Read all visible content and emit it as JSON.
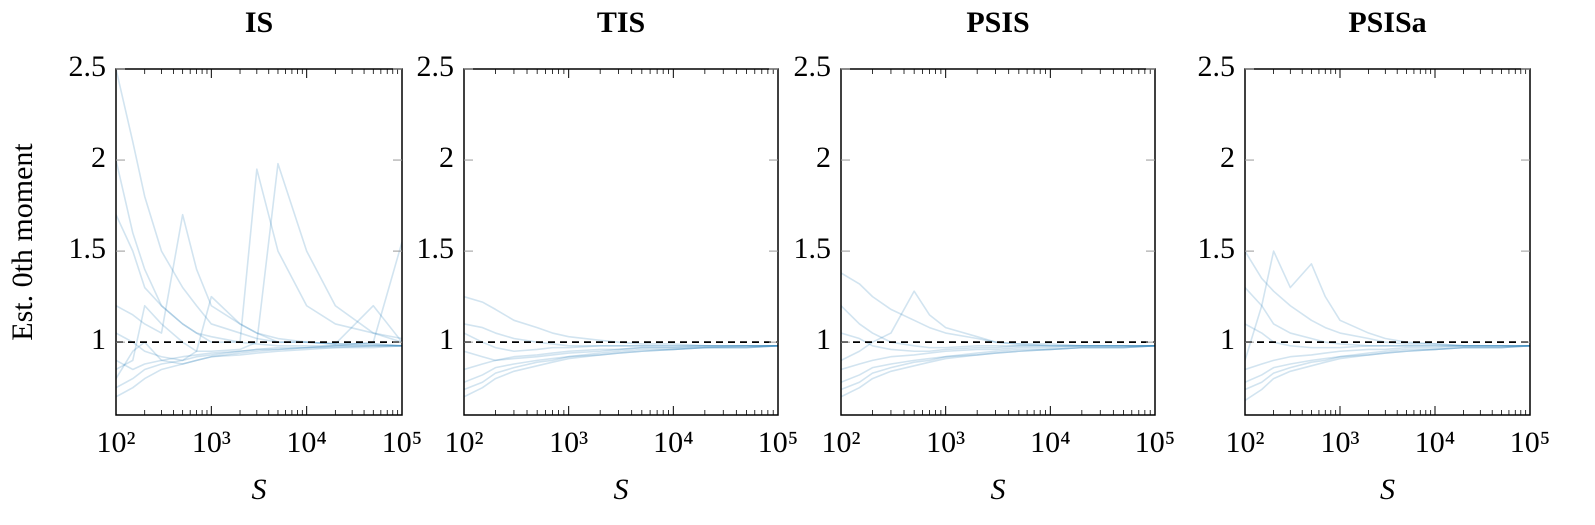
{
  "chart_data": [
    {
      "type": "line",
      "title": "IS",
      "xlabel": "S",
      "ylabel": "Est. 0th moment",
      "xscale": "log",
      "color": "#1f77b4",
      "line_opacity": 0.2,
      "reference_line": 1,
      "xlim": [
        100,
        100000
      ],
      "ylim": [
        0.6,
        2.5
      ],
      "xticks": [
        {
          "value": 100,
          "label": "10²"
        },
        {
          "value": 1000,
          "label": "10³"
        },
        {
          "value": 10000,
          "label": "10⁴"
        },
        {
          "value": 100000,
          "label": "10⁵"
        }
      ],
      "yticks": [
        1,
        1.5,
        2,
        2.5
      ],
      "x": [
        100,
        150,
        200,
        300,
        500,
        700,
        1000,
        2000,
        3000,
        5000,
        10000,
        20000,
        50000,
        100000
      ],
      "series": [
        {
          "values": [
            2.5,
            2.1,
            1.8,
            1.5,
            1.3,
            1.2,
            1.1,
            1.05,
            1.02,
            1.0,
            1.0,
            0.99,
            0.99,
            0.98
          ]
        },
        {
          "values": [
            0.75,
            0.8,
            0.85,
            0.88,
            0.9,
            0.92,
            0.93,
            0.95,
            0.96,
            0.97,
            0.97,
            0.98,
            0.98,
            0.98
          ]
        },
        {
          "values": [
            1.7,
            1.5,
            1.3,
            1.2,
            1.1,
            1.05,
            1.0,
            1.0,
            1.95,
            1.5,
            1.2,
            1.1,
            1.05,
            1.02
          ]
        },
        {
          "values": [
            0.85,
            0.9,
            1.2,
            1.1,
            1.0,
            0.95,
            0.95,
            0.96,
            1.0,
            1.98,
            1.5,
            1.2,
            1.05,
            1.0
          ]
        },
        {
          "values": [
            1.2,
            1.15,
            1.1,
            1.05,
            1.7,
            1.4,
            1.2,
            1.1,
            1.05,
            1.02,
            1.0,
            0.99,
            0.99,
            0.98
          ]
        },
        {
          "values": [
            0.9,
            0.85,
            0.88,
            0.9,
            0.92,
            0.93,
            0.94,
            0.95,
            0.96,
            0.96,
            0.97,
            0.98,
            1.0,
            1.55
          ]
        },
        {
          "values": [
            0.8,
            0.95,
            1.0,
            0.9,
            0.88,
            0.9,
            0.92,
            0.94,
            0.95,
            0.96,
            0.97,
            0.97,
            0.98,
            0.98
          ]
        },
        {
          "values": [
            2.0,
            1.6,
            1.4,
            1.2,
            1.1,
            1.05,
            1.03,
            1.0,
            0.99,
            0.98,
            0.98,
            0.98,
            0.98,
            0.98
          ]
        },
        {
          "values": [
            0.7,
            0.75,
            0.8,
            0.85,
            0.88,
            0.9,
            0.92,
            0.93,
            0.94,
            0.95,
            0.96,
            0.97,
            0.97,
            0.98
          ]
        },
        {
          "values": [
            1.05,
            1.0,
            0.95,
            0.92,
            0.9,
            0.95,
            1.25,
            1.1,
            1.05,
            1.0,
            1.0,
            0.99,
            1.2,
            1.0
          ]
        }
      ]
    },
    {
      "type": "line",
      "title": "TIS",
      "xlabel": "S",
      "xscale": "log",
      "color": "#1f77b4",
      "line_opacity": 0.2,
      "reference_line": 1,
      "xlim": [
        100,
        100000
      ],
      "ylim": [
        0.6,
        2.5
      ],
      "xticks": [
        {
          "value": 100,
          "label": "10²"
        },
        {
          "value": 1000,
          "label": "10³"
        },
        {
          "value": 10000,
          "label": "10⁴"
        },
        {
          "value": 100000,
          "label": "10⁵"
        }
      ],
      "yticks": [
        1,
        1.5,
        2,
        2.5
      ],
      "x": [
        100,
        150,
        200,
        300,
        500,
        700,
        1000,
        2000,
        3000,
        5000,
        10000,
        20000,
        50000,
        100000
      ],
      "series": [
        {
          "values": [
            1.25,
            1.22,
            1.18,
            1.12,
            1.08,
            1.05,
            1.03,
            1.01,
            1.0,
            0.99,
            0.99,
            0.98,
            0.98,
            0.98
          ]
        },
        {
          "values": [
            0.7,
            0.75,
            0.8,
            0.84,
            0.87,
            0.89,
            0.91,
            0.93,
            0.94,
            0.95,
            0.96,
            0.97,
            0.97,
            0.98
          ]
        },
        {
          "values": [
            0.85,
            0.88,
            0.9,
            0.92,
            0.93,
            0.94,
            0.95,
            0.96,
            0.96,
            0.97,
            0.97,
            0.98,
            0.98,
            0.98
          ]
        },
        {
          "values": [
            1.05,
            1.0,
            0.97,
            0.95,
            0.96,
            0.97,
            0.97,
            0.98,
            0.98,
            0.98,
            0.98,
            0.98,
            0.98,
            0.98
          ]
        },
        {
          "values": [
            0.78,
            0.82,
            0.86,
            0.88,
            0.9,
            0.91,
            0.92,
            0.94,
            0.95,
            0.96,
            0.96,
            0.97,
            0.97,
            0.98
          ]
        },
        {
          "values": [
            0.95,
            0.92,
            0.9,
            0.91,
            0.92,
            0.93,
            0.94,
            0.95,
            0.96,
            0.97,
            0.97,
            0.97,
            0.98,
            0.98
          ]
        },
        {
          "values": [
            1.1,
            1.08,
            1.05,
            1.02,
            1.0,
            0.99,
            0.98,
            0.98,
            0.98,
            0.98,
            0.98,
            0.98,
            0.98,
            0.98
          ]
        },
        {
          "values": [
            0.74,
            0.78,
            0.83,
            0.86,
            0.89,
            0.9,
            0.92,
            0.93,
            0.94,
            0.95,
            0.96,
            0.97,
            0.97,
            0.98
          ]
        }
      ]
    },
    {
      "type": "line",
      "title": "PSIS",
      "xlabel": "S",
      "xscale": "log",
      "color": "#1f77b4",
      "line_opacity": 0.2,
      "reference_line": 1,
      "xlim": [
        100,
        100000
      ],
      "ylim": [
        0.6,
        2.5
      ],
      "xticks": [
        {
          "value": 100,
          "label": "10²"
        },
        {
          "value": 1000,
          "label": "10³"
        },
        {
          "value": 10000,
          "label": "10⁴"
        },
        {
          "value": 100000,
          "label": "10⁵"
        }
      ],
      "yticks": [
        1,
        1.5,
        2,
        2.5
      ],
      "x": [
        100,
        150,
        200,
        300,
        500,
        700,
        1000,
        2000,
        3000,
        5000,
        10000,
        20000,
        50000,
        100000
      ],
      "series": [
        {
          "values": [
            1.38,
            1.32,
            1.25,
            1.18,
            1.12,
            1.08,
            1.05,
            1.02,
            1.0,
            0.99,
            0.99,
            0.98,
            0.98,
            0.98
          ]
        },
        {
          "values": [
            0.7,
            0.75,
            0.8,
            0.84,
            0.87,
            0.89,
            0.91,
            0.93,
            0.94,
            0.95,
            0.96,
            0.97,
            0.97,
            0.98
          ]
        },
        {
          "values": [
            0.9,
            0.95,
            1.0,
            1.05,
            1.28,
            1.15,
            1.08,
            1.03,
            1.0,
            0.99,
            0.98,
            0.98,
            0.98,
            0.98
          ]
        },
        {
          "values": [
            1.2,
            1.1,
            1.05,
            1.0,
            0.98,
            0.97,
            0.97,
            0.98,
            0.98,
            0.98,
            0.98,
            0.98,
            0.98,
            0.98
          ]
        },
        {
          "values": [
            0.78,
            0.82,
            0.86,
            0.88,
            0.9,
            0.91,
            0.92,
            0.94,
            0.95,
            0.96,
            0.96,
            0.97,
            0.97,
            0.98
          ]
        },
        {
          "values": [
            0.85,
            0.88,
            0.9,
            0.92,
            0.93,
            0.94,
            0.95,
            0.96,
            0.96,
            0.97,
            0.97,
            0.98,
            0.98,
            0.98
          ]
        },
        {
          "values": [
            1.05,
            1.02,
            0.98,
            0.96,
            0.95,
            0.95,
            0.96,
            0.97,
            0.97,
            0.98,
            0.98,
            0.98,
            0.98,
            0.98
          ]
        },
        {
          "values": [
            0.74,
            0.78,
            0.83,
            0.86,
            0.89,
            0.9,
            0.92,
            0.93,
            0.94,
            0.95,
            0.96,
            0.97,
            0.97,
            0.98
          ]
        }
      ]
    },
    {
      "type": "line",
      "title": "PSISa",
      "xlabel": "S",
      "xscale": "log",
      "color": "#1f77b4",
      "line_opacity": 0.2,
      "reference_line": 1,
      "xlim": [
        100,
        100000
      ],
      "ylim": [
        0.6,
        2.5
      ],
      "xticks": [
        {
          "value": 100,
          "label": "10²"
        },
        {
          "value": 1000,
          "label": "10³"
        },
        {
          "value": 10000,
          "label": "10⁴"
        },
        {
          "value": 100000,
          "label": "10⁵"
        }
      ],
      "yticks": [
        1,
        1.5,
        2,
        2.5
      ],
      "x": [
        100,
        150,
        200,
        300,
        500,
        700,
        1000,
        2000,
        3000,
        5000,
        10000,
        20000,
        50000,
        100000
      ],
      "series": [
        {
          "values": [
            1.5,
            1.35,
            1.28,
            1.2,
            1.12,
            1.08,
            1.05,
            1.02,
            1.0,
            0.99,
            0.99,
            0.98,
            0.98,
            0.98
          ]
        },
        {
          "values": [
            0.68,
            0.74,
            0.8,
            0.84,
            0.87,
            0.89,
            0.91,
            0.93,
            0.94,
            0.95,
            0.96,
            0.97,
            0.97,
            0.98
          ]
        },
        {
          "values": [
            0.9,
            1.2,
            1.5,
            1.3,
            1.43,
            1.25,
            1.12,
            1.05,
            1.02,
            1.0,
            0.99,
            0.98,
            0.98,
            0.98
          ]
        },
        {
          "values": [
            1.1,
            1.05,
            1.0,
            0.98,
            0.97,
            0.97,
            0.97,
            0.98,
            0.98,
            0.98,
            0.98,
            0.98,
            0.98,
            0.98
          ]
        },
        {
          "values": [
            0.78,
            0.82,
            0.86,
            0.88,
            0.9,
            0.91,
            0.92,
            0.94,
            0.95,
            0.96,
            0.96,
            0.97,
            0.97,
            0.98
          ]
        },
        {
          "values": [
            0.85,
            0.88,
            0.9,
            0.92,
            0.93,
            0.94,
            0.95,
            0.96,
            0.96,
            0.97,
            0.97,
            0.98,
            0.98,
            0.98
          ]
        },
        {
          "values": [
            1.3,
            1.2,
            1.1,
            1.05,
            1.02,
            1.0,
            0.99,
            0.98,
            0.98,
            0.98,
            0.98,
            0.98,
            0.98,
            0.98
          ]
        },
        {
          "values": [
            0.74,
            0.78,
            0.83,
            0.86,
            0.89,
            0.9,
            0.92,
            0.93,
            0.94,
            0.95,
            0.96,
            0.97,
            0.97,
            0.98
          ]
        }
      ]
    }
  ]
}
